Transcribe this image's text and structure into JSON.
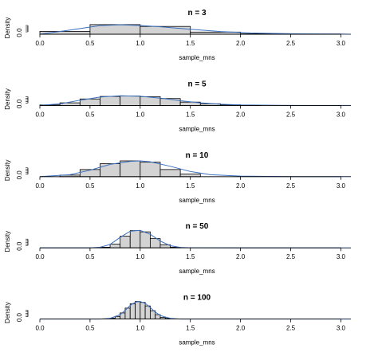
{
  "chart_data": [
    {
      "type": "histogram",
      "title": "n = 3",
      "xlabel": "sample_mns",
      "ylabel": "Density",
      "xlim": [
        0,
        3.1
      ],
      "xticks": [
        "0.0",
        "0.5",
        "1.0",
        "1.5",
        "2.0",
        "2.5",
        "3.0"
      ],
      "yticks": [
        "0.0"
      ],
      "bin_edges": [
        0,
        0.5,
        1.0,
        1.5,
        2.0,
        2.5,
        3.0
      ],
      "densities": [
        0.17,
        0.58,
        0.47,
        0.13,
        0.03,
        0.01
      ],
      "curve": {
        "x": [
          0,
          0.3,
          0.6,
          0.8,
          1.0,
          1.2,
          1.5,
          1.8,
          2.1,
          2.5,
          3.0,
          3.1
        ],
        "y": [
          0.0,
          0.25,
          0.52,
          0.57,
          0.53,
          0.45,
          0.3,
          0.16,
          0.08,
          0.03,
          0.01,
          0.0
        ]
      }
    },
    {
      "type": "histogram",
      "title": "n = 5",
      "xlabel": "sample_mns",
      "ylabel": "Density",
      "xlim": [
        0,
        3.1
      ],
      "xticks": [
        "0.0",
        "0.5",
        "1.0",
        "1.5",
        "2.0",
        "2.5",
        "3.0"
      ],
      "yticks": [
        "0.0"
      ],
      "bin_edges": [
        0,
        0.2,
        0.4,
        0.6,
        0.8,
        1.0,
        1.2,
        1.4,
        1.6,
        1.8,
        2.0,
        2.2
      ],
      "densities": [
        0.05,
        0.25,
        0.62,
        0.86,
        0.9,
        0.84,
        0.66,
        0.32,
        0.16,
        0.06,
        0.02
      ],
      "curve": {
        "x": [
          0,
          0.2,
          0.4,
          0.6,
          0.8,
          1.0,
          1.2,
          1.4,
          1.6,
          1.8,
          2.0,
          2.4,
          2.8,
          3.1
        ],
        "y": [
          0.0,
          0.15,
          0.5,
          0.8,
          0.92,
          0.88,
          0.7,
          0.45,
          0.25,
          0.12,
          0.05,
          0.01,
          0.0,
          0.0
        ]
      }
    },
    {
      "type": "histogram",
      "title": "n = 10",
      "xlabel": "sample_mns",
      "ylabel": "Density",
      "xlim": [
        0,
        3.1
      ],
      "xticks": [
        "0.0",
        "0.5",
        "1.0",
        "1.5",
        "2.0",
        "2.5",
        "3.0"
      ],
      "yticks": [
        "0.0"
      ],
      "bin_edges": [
        0.2,
        0.4,
        0.6,
        0.8,
        1.0,
        1.2,
        1.4,
        1.6
      ],
      "densities": [
        0.12,
        0.55,
        1.0,
        1.22,
        1.12,
        0.55,
        0.2
      ],
      "curve": {
        "x": [
          0,
          0.3,
          0.5,
          0.7,
          0.9,
          1.0,
          1.1,
          1.3,
          1.5,
          1.7,
          2.0,
          2.4,
          2.8,
          3.1
        ],
        "y": [
          0.0,
          0.15,
          0.5,
          0.95,
          1.18,
          1.22,
          1.15,
          0.8,
          0.4,
          0.15,
          0.04,
          0.01,
          0.0,
          0.0
        ]
      }
    },
    {
      "type": "histogram",
      "title": "n = 50",
      "xlabel": "sample_mns",
      "ylabel": "Density",
      "xlim": [
        0,
        3.1
      ],
      "xticks": [
        "0.0",
        "0.5",
        "1.0",
        "1.5",
        "2.0",
        "2.5",
        "3.0"
      ],
      "yticks": [
        "0.0"
      ],
      "bin_edges": [
        0.6,
        0.7,
        0.8,
        0.9,
        1.0,
        1.1,
        1.2,
        1.3,
        1.4
      ],
      "densities": [
        0.1,
        0.6,
        1.9,
        2.8,
        2.6,
        1.5,
        0.5,
        0.1
      ],
      "curve": {
        "x": [
          0,
          0.5,
          0.6,
          0.7,
          0.8,
          0.9,
          1.0,
          1.1,
          1.2,
          1.3,
          1.4,
          1.5,
          2.0,
          3.1
        ],
        "y": [
          0.0,
          0.0,
          0.1,
          0.55,
          1.7,
          2.7,
          2.85,
          2.2,
          1.1,
          0.35,
          0.08,
          0.01,
          0.0,
          0.0
        ]
      }
    },
    {
      "type": "histogram",
      "title": "n = 100",
      "xlabel": "sample_mns",
      "ylabel": "Density",
      "xlim": [
        0,
        3.1
      ],
      "xticks": [
        "0.0",
        "0.5",
        "1.0",
        "1.5",
        "2.0",
        "2.5",
        "3.0"
      ],
      "yticks": [
        "0.0"
      ],
      "bin_edges": [
        0.7,
        0.75,
        0.8,
        0.85,
        0.9,
        0.95,
        1.0,
        1.05,
        1.1,
        1.15,
        1.2,
        1.25,
        1.3
      ],
      "densities": [
        0.2,
        0.6,
        1.4,
        2.5,
        3.5,
        4.0,
        3.8,
        3.0,
        1.9,
        1.0,
        0.4,
        0.15
      ],
      "curve": {
        "x": [
          0,
          0.6,
          0.7,
          0.8,
          0.85,
          0.9,
          0.95,
          1.0,
          1.05,
          1.1,
          1.15,
          1.2,
          1.3,
          1.4,
          3.1
        ],
        "y": [
          0.0,
          0.0,
          0.15,
          1.0,
          2.0,
          3.1,
          3.85,
          4.0,
          3.6,
          2.6,
          1.6,
          0.8,
          0.15,
          0.0,
          0.0
        ]
      }
    }
  ]
}
